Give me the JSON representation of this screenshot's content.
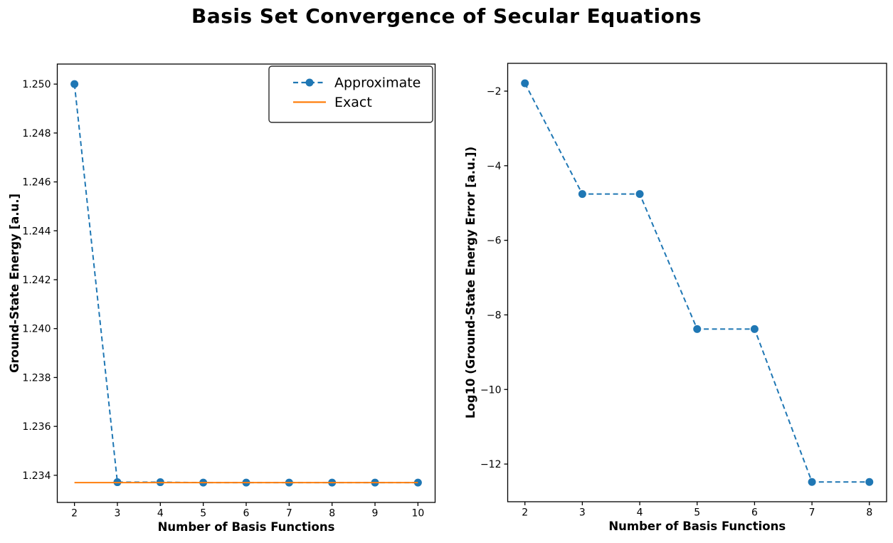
{
  "figure": {
    "title": "Basis Set Convergence of Secular Equations",
    "background": "#ffffff"
  },
  "colors": {
    "approximate": "#1f77b4",
    "exact": "#ff7f0e",
    "axis": "#000000",
    "legend_border": "#2b2b2b"
  },
  "chart_data": [
    {
      "type": "line",
      "title": "",
      "xlabel": "Number of Basis Functions",
      "ylabel": "Ground-State Energy [a.u.]",
      "xlim": [
        1.6,
        10.4
      ],
      "ylim": [
        1.23289,
        1.25082
      ],
      "grid": false,
      "xticks": [
        2,
        3,
        4,
        5,
        6,
        7,
        8,
        9,
        10
      ],
      "xtick_labels": [
        "2",
        "3",
        "4",
        "5",
        "6",
        "7",
        "8",
        "9",
        "10"
      ],
      "yticks": [
        1.234,
        1.236,
        1.238,
        1.24,
        1.242,
        1.244,
        1.246,
        1.248,
        1.25
      ],
      "ytick_labels": [
        "1.234",
        "1.236",
        "1.238",
        "1.240",
        "1.242",
        "1.244",
        "1.246",
        "1.248",
        "1.250"
      ],
      "legend": {
        "position": "upper-right",
        "entries": [
          "Approximate",
          "Exact"
        ]
      },
      "series": [
        {
          "name": "Approximate",
          "color": "#1f77b4",
          "line": "dashed",
          "marker": "circle",
          "x": [
            2,
            3,
            4,
            5,
            6,
            7,
            8,
            9,
            10
          ],
          "y": [
            1.25,
            1.233718,
            1.233718,
            1.2337006,
            1.2337006,
            1.2337006,
            1.2337006,
            1.2337006,
            1.2337006
          ]
        },
        {
          "name": "Exact",
          "color": "#ff7f0e",
          "line": "solid",
          "marker": "none",
          "x": [
            2,
            10
          ],
          "y": [
            1.2337006,
            1.2337006
          ]
        }
      ]
    },
    {
      "type": "line",
      "title": "",
      "xlabel": "Number of Basis Functions",
      "ylabel": "Log10 (Ground-State Energy Error [a.u.])",
      "xlim": [
        1.7,
        8.3
      ],
      "ylim": [
        -13.01,
        -1.255
      ],
      "grid": false,
      "xticks": [
        2,
        3,
        4,
        5,
        6,
        7,
        8
      ],
      "xtick_labels": [
        "2",
        "3",
        "4",
        "5",
        "6",
        "7",
        "8"
      ],
      "yticks": [
        -12,
        -10,
        -8,
        -6,
        -4,
        -2
      ],
      "ytick_labels": [
        "−12",
        "−10",
        "−8",
        "−6",
        "−4",
        "−2"
      ],
      "series": [
        {
          "name": "Approximate",
          "color": "#1f77b4",
          "line": "dashed",
          "marker": "circle",
          "x": [
            2,
            3,
            4,
            5,
            6,
            7,
            8
          ],
          "y": [
            -1.79,
            -4.76,
            -4.76,
            -8.38,
            -8.38,
            -12.48,
            -12.48
          ]
        }
      ]
    }
  ]
}
